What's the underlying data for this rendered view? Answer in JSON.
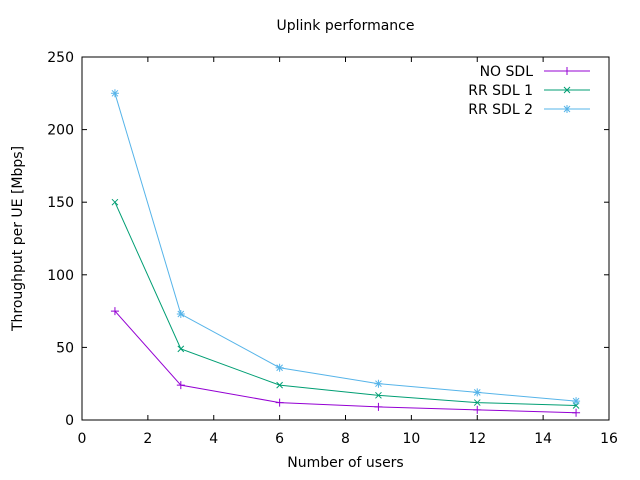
{
  "window": {
    "background": "#ffffff"
  },
  "chart_data": {
    "type": "line",
    "title": "Uplink performance",
    "xlabel": "Number of users",
    "ylabel": "Throughput per UE [Mbps]",
    "x": [
      1,
      3,
      6,
      9,
      12,
      15
    ],
    "series": [
      {
        "name": "NO SDL",
        "values": [
          75,
          24,
          12,
          9,
          7,
          5
        ],
        "color": "#9400d3",
        "marker": "plus"
      },
      {
        "name": "RR SDL 1",
        "values": [
          150,
          49,
          24,
          17,
          12,
          10
        ],
        "color": "#009e73",
        "marker": "cross"
      },
      {
        "name": "RR SDL 2",
        "values": [
          225,
          73,
          36,
          25,
          19,
          13
        ],
        "color": "#56b4e9",
        "marker": "asterisk"
      }
    ],
    "xlim": [
      0,
      16
    ],
    "ylim": [
      0,
      250
    ],
    "xticks": [
      0,
      2,
      4,
      6,
      8,
      10,
      12,
      14,
      16
    ],
    "yticks": [
      0,
      50,
      100,
      150,
      200,
      250
    ],
    "grid": false,
    "legend_position": "top-right-inside",
    "frame_color": "#000000",
    "text_color": "#000000",
    "background": "#ffffff"
  }
}
